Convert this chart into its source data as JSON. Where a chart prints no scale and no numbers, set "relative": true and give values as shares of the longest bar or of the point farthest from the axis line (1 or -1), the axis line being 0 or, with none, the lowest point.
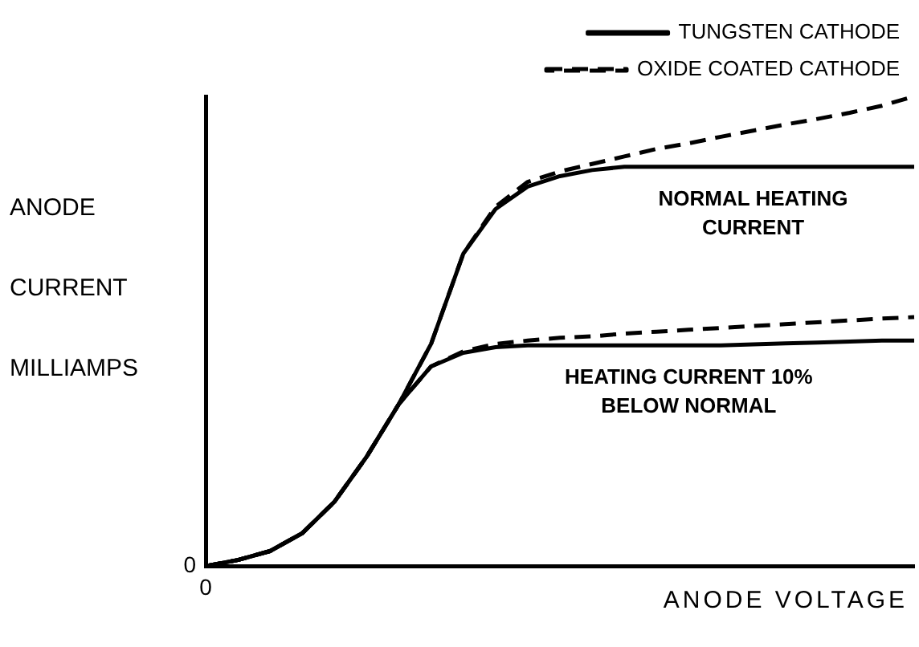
{
  "chart_data": {
    "type": "line",
    "relative": true,
    "xlabel": "ANODE VOLTAGE",
    "ylabel": "ANODE CURRENT MILLIAMPS",
    "legend": "top right",
    "grid": false,
    "marker": "none",
    "categories": [
      null,
      null,
      null,
      null,
      null,
      null,
      null,
      null,
      null,
      null,
      null,
      null,
      null,
      null,
      null,
      null,
      null,
      null,
      null,
      null,
      null,
      null,
      null
    ],
    "series": [
      {
        "name": "TUNGSTEN CATHODE",
        "color": "#000000",
        "line_style": "solid",
        "values": [
          0,
          0.013,
          0.032,
          0.07,
          0.137,
          0.233,
          0.345,
          0.473,
          0.665,
          0.76,
          0.808,
          0.83,
          0.843,
          0.85,
          0.85,
          0.85,
          0.85,
          0.85,
          0.85,
          0.85,
          0.85,
          0.85,
          0.85
        ]
      },
      {
        "name": "OXIDE COATED CATHODE",
        "color": "#000000",
        "line_style": "dashed",
        "values": [
          0,
          0.013,
          0.032,
          0.07,
          0.137,
          0.233,
          0.345,
          0.473,
          0.665,
          0.765,
          0.818,
          0.84,
          0.856,
          0.872,
          0.888,
          0.9,
          0.914,
          0.927,
          0.94,
          0.952,
          0.965,
          0.98,
          1
        ]
      },
      {
        "color": "#000000",
        "line_style": "solid",
        "values": [
          0,
          0.013,
          0.032,
          0.07,
          0.137,
          0.233,
          0.345,
          0.425,
          0.454,
          0.466,
          0.47,
          0.47,
          0.47,
          0.47,
          0.47,
          0.47,
          0.47,
          0.472,
          0.474,
          0.476,
          0.478,
          0.48,
          0.48
        ]
      },
      {
        "color": "#000000",
        "line_style": "dashed",
        "values": [
          0,
          0.013,
          0.032,
          0.07,
          0.137,
          0.233,
          0.345,
          0.425,
          0.457,
          0.473,
          0.48,
          0.486,
          0.489,
          0.495,
          0.499,
          0.503,
          0.507,
          0.511,
          0.515,
          0.519,
          0.523,
          0.527,
          0.53
        ]
      }
    ],
    "annotations": [
      "NORMAL HEATING CURRENT",
      "HEATING CURRENT 10% BELOW NORMAL",
      "0",
      "0"
    ]
  }
}
